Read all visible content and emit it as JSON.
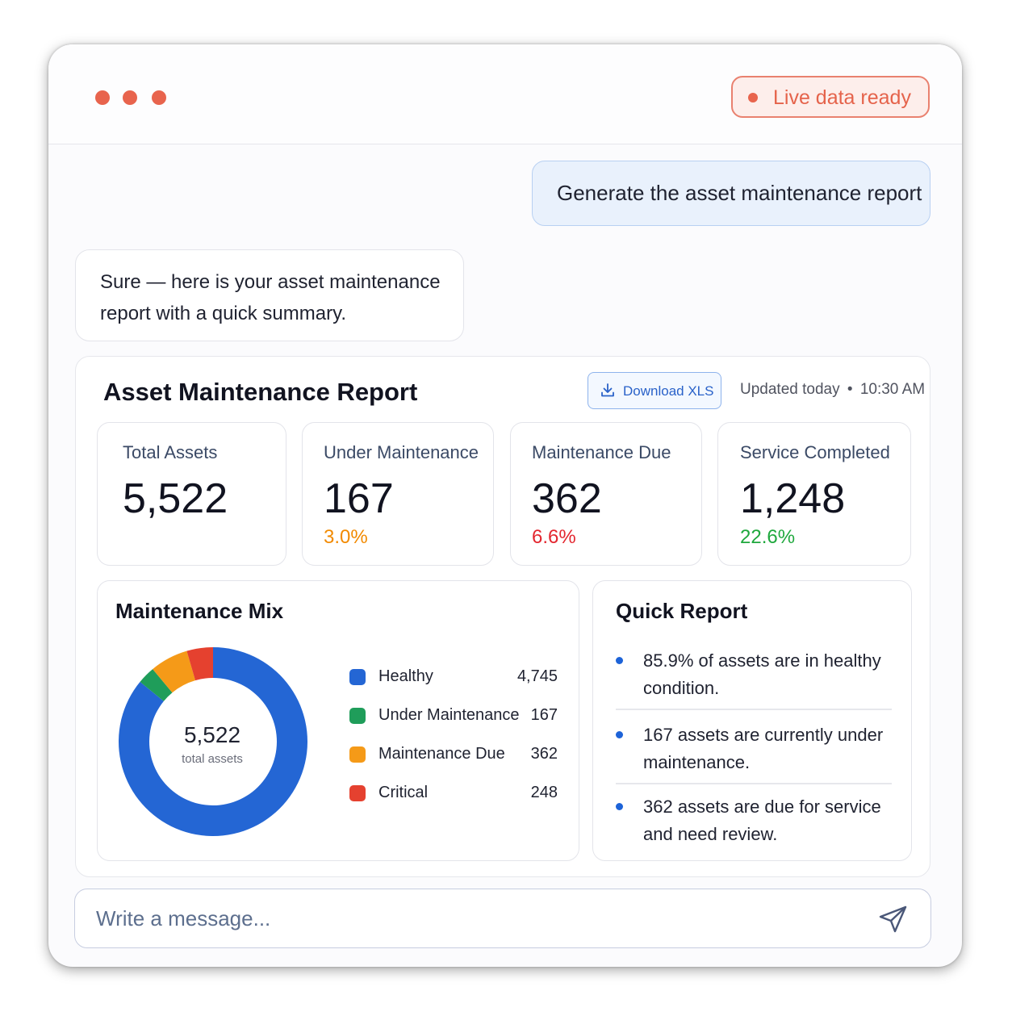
{
  "window": {
    "dot_color": "#e8644d",
    "status_badge": "Live data ready"
  },
  "conversation": {
    "user_message": "Generate the asset maintenance report",
    "assistant_message": "Sure — here is your asset maintenance report with a quick summary."
  },
  "report": {
    "title": "Asset Maintenance Report",
    "download_label": "Download XLS",
    "download_icon": "download-icon",
    "updated_label": "Updated today",
    "updated_time": "10:30 AM",
    "kpis": [
      {
        "label": "Total Assets",
        "value": "5,522",
        "pct": "",
        "color": ""
      },
      {
        "label": "Under Maintenance",
        "value": "167",
        "pct": "3.0%",
        "color": "#f28a00"
      },
      {
        "label": "Maintenance Due",
        "value": "362",
        "pct": "6.6%",
        "color": "#e3262f"
      },
      {
        "label": "Service Completed",
        "value": "1,248",
        "pct": "22.6%",
        "color": "#1fa83d"
      }
    ]
  },
  "mix": {
    "title": "Maintenance Mix",
    "center_value": "5,522",
    "center_label": "total assets",
    "legend": [
      {
        "name": "Healthy",
        "value": "4,745",
        "color": "#2466d4"
      },
      {
        "name": "Under Maintenance",
        "value": "167",
        "color": "#1f9d5a"
      },
      {
        "name": "Maintenance Due",
        "value": "362",
        "color": "#f59a18"
      },
      {
        "name": "Critical",
        "value": "248",
        "color": "#e5412f"
      }
    ]
  },
  "quick_report": {
    "title": "Quick Report",
    "items": [
      "85.9% of assets are in healthy condition.",
      "167 assets are currently under maintenance.",
      "362 assets are due for service and need review."
    ]
  },
  "composer": {
    "placeholder": "Write a message...",
    "send_icon": "send-icon"
  }
}
